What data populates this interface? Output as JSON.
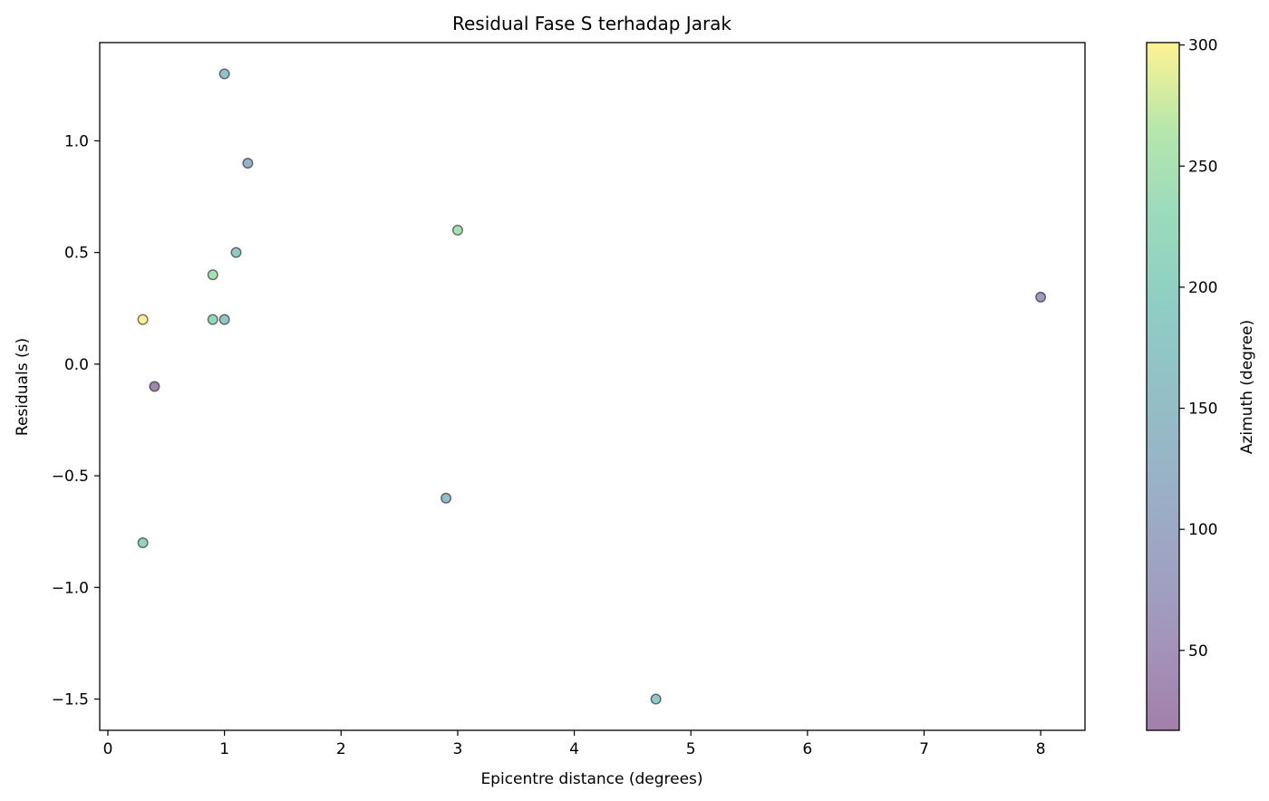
{
  "chart_data": {
    "type": "scatter",
    "title": "Residual Fase S terhadap Jarak",
    "xlabel": "Epicentre distance (degrees)",
    "ylabel": "Residuals (s)",
    "colorbar_label": "Azimuth (degree)",
    "xlim": [
      -0.07,
      8.38
    ],
    "ylim": [
      -1.64,
      1.44
    ],
    "xticks": [
      0,
      1,
      2,
      3,
      4,
      5,
      6,
      7,
      8
    ],
    "yticks": [
      -1.5,
      -1.0,
      -0.5,
      0.0,
      0.5,
      1.0
    ],
    "colorbar_range": [
      17,
      301
    ],
    "colorbar_ticks": [
      50,
      100,
      150,
      200,
      250,
      300
    ],
    "colormap": "viridis",
    "marker_alpha": 0.5,
    "grid": false,
    "points": [
      {
        "x": 1.0,
        "y": 1.3,
        "azimuth": 160
      },
      {
        "x": 1.2,
        "y": 0.9,
        "azimuth": 120
      },
      {
        "x": 3.0,
        "y": 0.6,
        "azimuth": 250
      },
      {
        "x": 1.1,
        "y": 0.5,
        "azimuth": 175
      },
      {
        "x": 0.9,
        "y": 0.4,
        "azimuth": 245
      },
      {
        "x": 0.3,
        "y": 0.2,
        "azimuth": 298
      },
      {
        "x": 0.9,
        "y": 0.2,
        "azimuth": 220
      },
      {
        "x": 1.0,
        "y": 0.2,
        "azimuth": 175
      },
      {
        "x": 8.0,
        "y": 0.3,
        "azimuth": 60
      },
      {
        "x": 0.4,
        "y": -0.1,
        "azimuth": 25
      },
      {
        "x": 2.9,
        "y": -0.6,
        "azimuth": 145
      },
      {
        "x": 0.3,
        "y": -0.8,
        "azimuth": 205
      },
      {
        "x": 4.7,
        "y": -1.5,
        "azimuth": 180
      }
    ]
  }
}
